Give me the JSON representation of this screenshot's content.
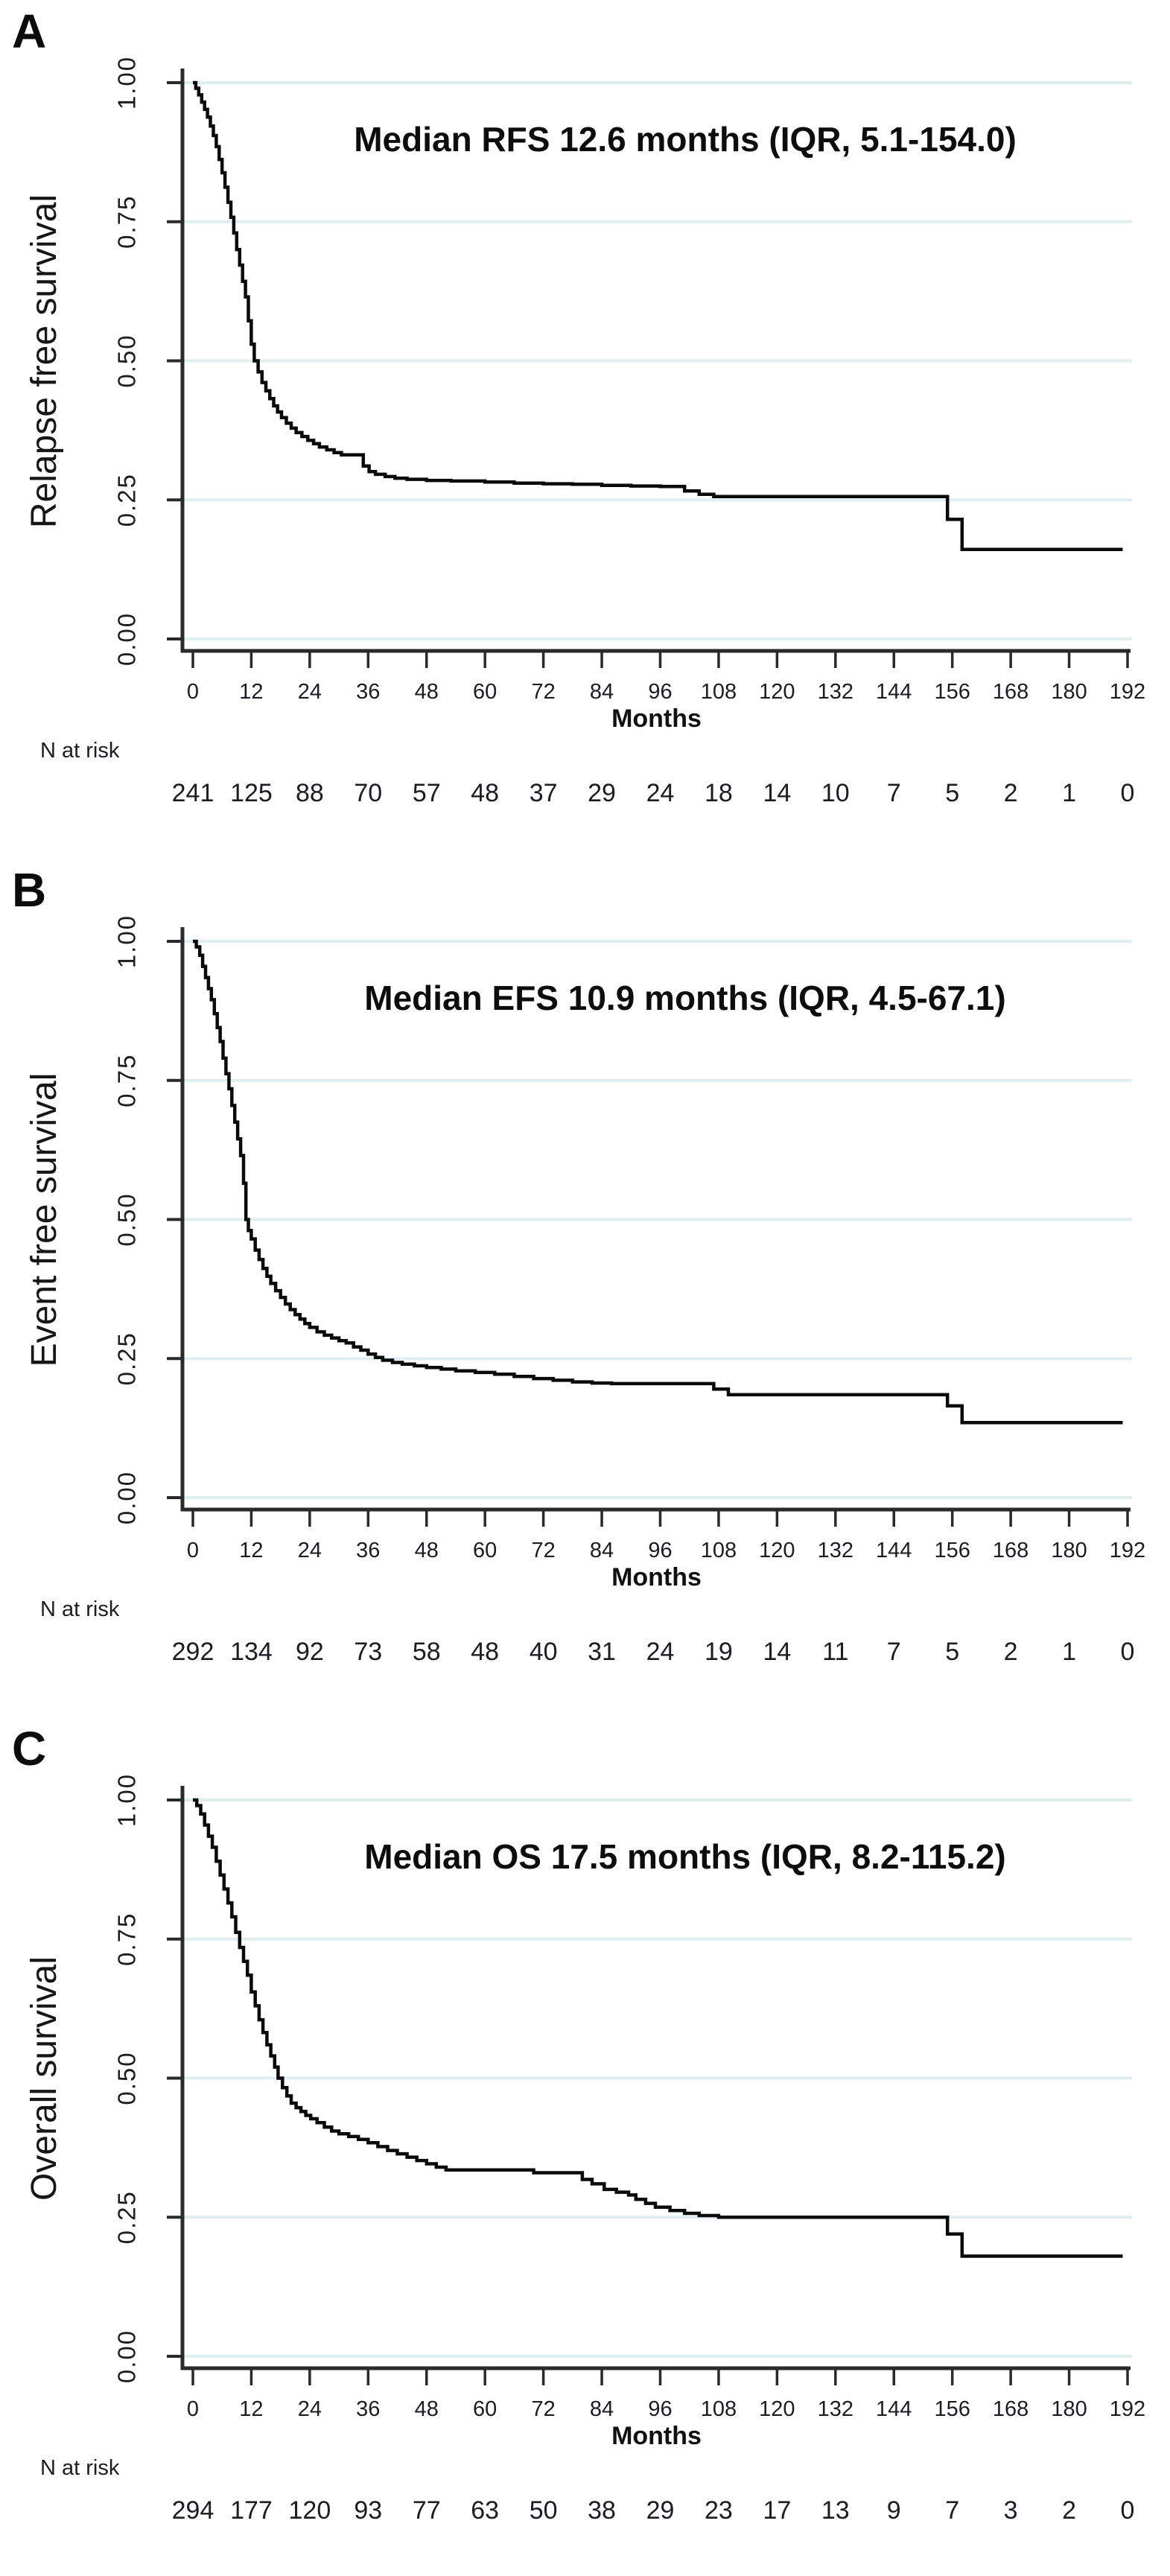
{
  "figure_type": "kaplan-meier-three-panel",
  "style": {
    "curve_color": "#0a0a0a",
    "axis_color": "#2a2a2a",
    "grid_color": "#dfeef0",
    "text_color": "#1c1c24",
    "background": "#ffffff"
  },
  "chart_data": [
    {
      "type": "line",
      "subtype": "kaplan-meier-step",
      "panel_label": "A",
      "title": "Median RFS 12.6 months (IQR, 5.1-154.0)",
      "ylabel": "Relapse free survival",
      "xlabel": "Months",
      "xlim": [
        0,
        192
      ],
      "ylim": [
        0.0,
        1.0
      ],
      "grid": true,
      "xticks": [
        0,
        12,
        24,
        36,
        48,
        60,
        72,
        84,
        96,
        108,
        120,
        132,
        144,
        156,
        168,
        180,
        192
      ],
      "ytick_labels": [
        "0.00",
        "0.25",
        "0.50",
        "0.75",
        "1.00"
      ],
      "yticks": [
        0.0,
        0.25,
        0.5,
        0.75,
        1.0
      ],
      "n_at_risk": {
        "label": "N at risk",
        "times": [
          0,
          12,
          24,
          36,
          48,
          60,
          72,
          84,
          96,
          108,
          120,
          132,
          144,
          156,
          168,
          180,
          192
        ],
        "counts": [
          241,
          125,
          88,
          70,
          57,
          48,
          37,
          29,
          24,
          18,
          14,
          10,
          7,
          5,
          2,
          1,
          0
        ]
      },
      "steps": [
        [
          0,
          1.0
        ],
        [
          0.6,
          0.99
        ],
        [
          1.2,
          0.978
        ],
        [
          1.8,
          0.965
        ],
        [
          2.4,
          0.952
        ],
        [
          3,
          0.938
        ],
        [
          3.6,
          0.922
        ],
        [
          4.2,
          0.905
        ],
        [
          4.8,
          0.885
        ],
        [
          5.4,
          0.862
        ],
        [
          6,
          0.838
        ],
        [
          6.6,
          0.812
        ],
        [
          7.2,
          0.785
        ],
        [
          7.8,
          0.758
        ],
        [
          8.4,
          0.73
        ],
        [
          9,
          0.7
        ],
        [
          9.6,
          0.672
        ],
        [
          10.2,
          0.643
        ],
        [
          10.8,
          0.615
        ],
        [
          11.4,
          0.572
        ],
        [
          12,
          0.53
        ],
        [
          12.6,
          0.5
        ],
        [
          13.4,
          0.48
        ],
        [
          14.2,
          0.461
        ],
        [
          15,
          0.446
        ],
        [
          15.8,
          0.432
        ],
        [
          16.6,
          0.419
        ],
        [
          17.4,
          0.408
        ],
        [
          18.2,
          0.398
        ],
        [
          19.2,
          0.388
        ],
        [
          20.2,
          0.379
        ],
        [
          21.2,
          0.371
        ],
        [
          22.4,
          0.364
        ],
        [
          23.6,
          0.357
        ],
        [
          24.8,
          0.351
        ],
        [
          26,
          0.345
        ],
        [
          27.5,
          0.34
        ],
        [
          29,
          0.335
        ],
        [
          30.5,
          0.331
        ],
        [
          35,
          0.311
        ],
        [
          36.2,
          0.301
        ],
        [
          37.5,
          0.296
        ],
        [
          39.5,
          0.292
        ],
        [
          41.5,
          0.289
        ],
        [
          44,
          0.287
        ],
        [
          48,
          0.285
        ],
        [
          53,
          0.284
        ],
        [
          60,
          0.282
        ],
        [
          66,
          0.28
        ],
        [
          72,
          0.279
        ],
        [
          78,
          0.278
        ],
        [
          84,
          0.276
        ],
        [
          90,
          0.275
        ],
        [
          96,
          0.274
        ],
        [
          101,
          0.266
        ],
        [
          104,
          0.26
        ],
        [
          107,
          0.256
        ],
        [
          155,
          0.215
        ],
        [
          158,
          0.161
        ],
        [
          191,
          0.161
        ]
      ]
    },
    {
      "type": "line",
      "subtype": "kaplan-meier-step",
      "panel_label": "B",
      "title": "Median EFS 10.9 months (IQR, 4.5-67.1)",
      "ylabel": "Event free survival",
      "xlabel": "Months",
      "xlim": [
        0,
        192
      ],
      "ylim": [
        0.0,
        1.0
      ],
      "grid": true,
      "xticks": [
        0,
        12,
        24,
        36,
        48,
        60,
        72,
        84,
        96,
        108,
        120,
        132,
        144,
        156,
        168,
        180,
        192
      ],
      "ytick_labels": [
        "0.00",
        "0.25",
        "0.50",
        "0.75",
        "1.00"
      ],
      "yticks": [
        0.0,
        0.25,
        0.5,
        0.75,
        1.0
      ],
      "n_at_risk": {
        "label": "N at risk",
        "times": [
          0,
          12,
          24,
          36,
          48,
          60,
          72,
          84,
          96,
          108,
          120,
          132,
          144,
          156,
          168,
          180,
          192
        ],
        "counts": [
          292,
          134,
          92,
          73,
          58,
          48,
          40,
          31,
          24,
          19,
          14,
          11,
          7,
          5,
          2,
          1,
          0
        ]
      },
      "steps": [
        [
          0,
          1.0
        ],
        [
          0.7,
          0.99
        ],
        [
          1.4,
          0.975
        ],
        [
          2,
          0.955
        ],
        [
          2.6,
          0.935
        ],
        [
          3.2,
          0.915
        ],
        [
          3.8,
          0.895
        ],
        [
          4.4,
          0.87
        ],
        [
          5,
          0.845
        ],
        [
          5.6,
          0.82
        ],
        [
          6.2,
          0.79
        ],
        [
          6.8,
          0.762
        ],
        [
          7.4,
          0.735
        ],
        [
          8,
          0.705
        ],
        [
          8.6,
          0.675
        ],
        [
          9.2,
          0.645
        ],
        [
          9.8,
          0.615
        ],
        [
          10.4,
          0.565
        ],
        [
          10.9,
          0.5
        ],
        [
          11.4,
          0.48
        ],
        [
          12,
          0.465
        ],
        [
          12.8,
          0.445
        ],
        [
          13.6,
          0.428
        ],
        [
          14.4,
          0.412
        ],
        [
          15.2,
          0.398
        ],
        [
          16,
          0.385
        ],
        [
          17,
          0.372
        ],
        [
          18,
          0.36
        ],
        [
          19,
          0.348
        ],
        [
          20,
          0.338
        ],
        [
          21,
          0.329
        ],
        [
          22,
          0.321
        ],
        [
          23,
          0.313
        ],
        [
          24,
          0.306
        ],
        [
          25.5,
          0.298
        ],
        [
          27,
          0.292
        ],
        [
          28.5,
          0.287
        ],
        [
          30,
          0.282
        ],
        [
          31.5,
          0.278
        ],
        [
          33,
          0.271
        ],
        [
          34.5,
          0.265
        ],
        [
          36,
          0.258
        ],
        [
          37.5,
          0.252
        ],
        [
          39,
          0.247
        ],
        [
          41,
          0.243
        ],
        [
          43,
          0.24
        ],
        [
          45.5,
          0.237
        ],
        [
          48,
          0.234
        ],
        [
          51,
          0.231
        ],
        [
          54,
          0.228
        ],
        [
          58,
          0.225
        ],
        [
          62,
          0.222
        ],
        [
          66,
          0.218
        ],
        [
          70,
          0.214
        ],
        [
          74,
          0.211
        ],
        [
          78,
          0.208
        ],
        [
          82,
          0.206
        ],
        [
          86,
          0.205
        ],
        [
          107,
          0.195
        ],
        [
          110,
          0.185
        ],
        [
          155,
          0.165
        ],
        [
          158,
          0.135
        ],
        [
          191,
          0.135
        ]
      ]
    },
    {
      "type": "line",
      "subtype": "kaplan-meier-step",
      "panel_label": "C",
      "title": "Median OS 17.5 months (IQR, 8.2-115.2)",
      "ylabel": "Overall survival",
      "xlabel": "Months",
      "xlim": [
        0,
        192
      ],
      "ylim": [
        0.0,
        1.0
      ],
      "grid": true,
      "xticks": [
        0,
        12,
        24,
        36,
        48,
        60,
        72,
        84,
        96,
        108,
        120,
        132,
        144,
        156,
        168,
        180,
        192
      ],
      "ytick_labels": [
        "0.00",
        "0.25",
        "0.50",
        "0.75",
        "1.00"
      ],
      "yticks": [
        0.0,
        0.25,
        0.5,
        0.75,
        1.0
      ],
      "n_at_risk": {
        "label": "N at risk",
        "times": [
          0,
          12,
          24,
          36,
          48,
          60,
          72,
          84,
          96,
          108,
          120,
          132,
          144,
          156,
          168,
          180,
          192
        ],
        "counts": [
          294,
          177,
          120,
          93,
          77,
          63,
          50,
          38,
          29,
          23,
          17,
          13,
          9,
          7,
          3,
          2,
          0
        ]
      },
      "steps": [
        [
          0,
          1.0
        ],
        [
          0.8,
          0.99
        ],
        [
          1.6,
          0.975
        ],
        [
          2.4,
          0.955
        ],
        [
          3.2,
          0.935
        ],
        [
          4,
          0.915
        ],
        [
          4.8,
          0.89
        ],
        [
          5.6,
          0.865
        ],
        [
          6.4,
          0.84
        ],
        [
          7.2,
          0.815
        ],
        [
          8,
          0.79
        ],
        [
          8.8,
          0.762
        ],
        [
          9.6,
          0.735
        ],
        [
          10.4,
          0.71
        ],
        [
          11.2,
          0.685
        ],
        [
          12,
          0.655
        ],
        [
          12.8,
          0.63
        ],
        [
          13.6,
          0.605
        ],
        [
          14.4,
          0.582
        ],
        [
          15.2,
          0.56
        ],
        [
          16,
          0.54
        ],
        [
          16.8,
          0.52
        ],
        [
          17.5,
          0.5
        ],
        [
          18.4,
          0.483
        ],
        [
          19.3,
          0.468
        ],
        [
          20.2,
          0.455
        ],
        [
          21.2,
          0.447
        ],
        [
          22.2,
          0.44
        ],
        [
          23.2,
          0.433
        ],
        [
          24.2,
          0.427
        ],
        [
          25.5,
          0.42
        ],
        [
          27,
          0.412
        ],
        [
          28.5,
          0.405
        ],
        [
          30,
          0.4
        ],
        [
          32,
          0.395
        ],
        [
          34,
          0.39
        ],
        [
          36,
          0.384
        ],
        [
          38,
          0.377
        ],
        [
          40,
          0.37
        ],
        [
          42,
          0.364
        ],
        [
          44,
          0.358
        ],
        [
          46,
          0.352
        ],
        [
          48,
          0.346
        ],
        [
          50,
          0.34
        ],
        [
          52,
          0.335
        ],
        [
          70,
          0.33
        ],
        [
          80,
          0.318
        ],
        [
          82,
          0.31
        ],
        [
          84.5,
          0.3
        ],
        [
          87,
          0.295
        ],
        [
          89.5,
          0.29
        ],
        [
          91,
          0.282
        ],
        [
          93,
          0.275
        ],
        [
          95,
          0.268
        ],
        [
          98,
          0.262
        ],
        [
          101,
          0.257
        ],
        [
          104,
          0.253
        ],
        [
          108,
          0.25
        ],
        [
          155,
          0.22
        ],
        [
          158,
          0.18
        ],
        [
          191,
          0.18
        ]
      ]
    }
  ]
}
